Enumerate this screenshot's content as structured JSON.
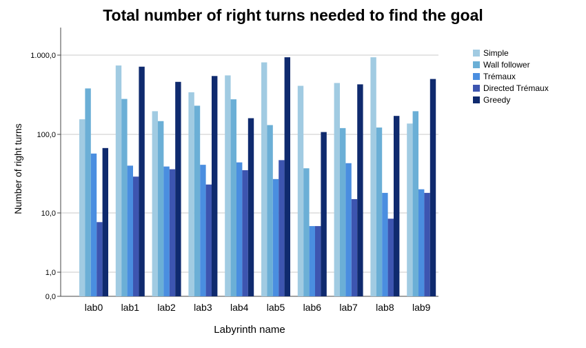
{
  "chart_data": {
    "type": "bar",
    "title": "Total number of right turns needed to find the goal",
    "xlabel": "Labyrinth name",
    "ylabel": "Number of right turns",
    "yscale": "log",
    "ylim": [
      0,
      2000
    ],
    "yticks": [
      {
        "value": 0,
        "label": "0,0"
      },
      {
        "value": 1,
        "label": "1,0"
      },
      {
        "value": 10,
        "label": "10,0"
      },
      {
        "value": 100,
        "label": "100,0"
      },
      {
        "value": 1000,
        "label": "1.000,0"
      }
    ],
    "grid": true,
    "legend_position": "right",
    "categories": [
      "lab0",
      "lab1",
      "lab2",
      "lab3",
      "lab4",
      "lab5",
      "lab6",
      "lab7",
      "lab8",
      "lab9"
    ],
    "series": [
      {
        "name": "Simple",
        "color": "#a1cbe2",
        "values": [
          155,
          740,
          196,
          340,
          555,
          810,
          410,
          445,
          940,
          137
        ]
      },
      {
        "name": "Wall follower",
        "color": "#6bafd6",
        "values": [
          380,
          280,
          147,
          230,
          277,
          131,
          37,
          120,
          122,
          196
        ]
      },
      {
        "name": "Trémaux",
        "color": "#4a8ee0",
        "values": [
          57,
          40,
          39,
          41,
          44,
          27,
          6,
          43,
          18,
          20
        ]
      },
      {
        "name": "Directed Trémaux",
        "color": "#3d55b0",
        "values": [
          7,
          29,
          36,
          23,
          35,
          47,
          6,
          15,
          8,
          18
        ]
      },
      {
        "name": "Greedy",
        "color": "#0f2a6e",
        "values": [
          67,
          715,
          460,
          545,
          160,
          940,
          107,
          428,
          171,
          500
        ]
      }
    ]
  }
}
